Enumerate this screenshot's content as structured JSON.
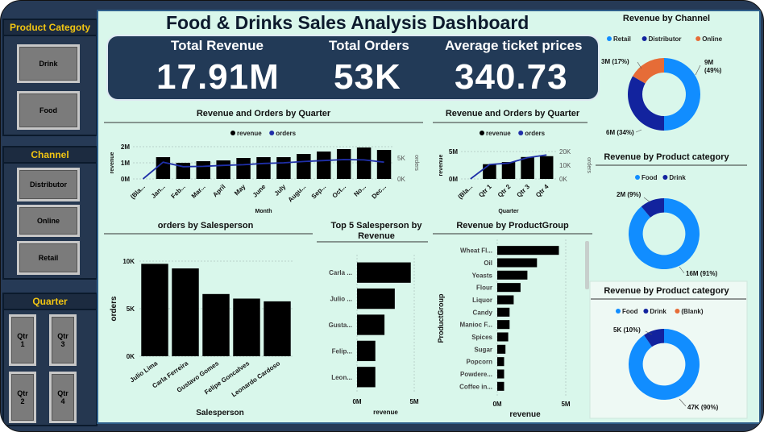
{
  "title": "Food & Drinks Sales Analysis Dashboard",
  "colors": {
    "background": "#d9f7eb",
    "panel": "#263a56",
    "kpi": "#223a57",
    "accent": "#f2c512",
    "bar": "#000000",
    "line": "#1f2fa8",
    "retail": "#118dff",
    "distributor": "#12239e",
    "online": "#e66c37"
  },
  "slicers": {
    "product": {
      "title": "Product Categoty",
      "items": [
        "Drink",
        "Food"
      ]
    },
    "channel": {
      "title": "Channel",
      "items": [
        "Distributor",
        "Online",
        "Retail"
      ]
    },
    "quarter": {
      "title": "Quarter",
      "items": [
        "Qtr 1",
        "Qtr 3",
        "Qtr 2",
        "Qtr 4"
      ]
    }
  },
  "kpis": [
    {
      "label": "Total Revenue",
      "value": "17.91M"
    },
    {
      "label": "Total Orders",
      "value": "53K"
    },
    {
      "label": "Average ticket prices",
      "value": "340.73"
    }
  ],
  "chart_data": [
    {
      "id": "monthly",
      "type": "bar",
      "title": "Revenue and Orders by Quarter",
      "legend": [
        "revenue",
        "orders"
      ],
      "xlabel": "Month",
      "ylabel": "revenue",
      "y2label": "orders",
      "categories": [
        "(Bla...",
        "Jan...",
        "Feb...",
        "Mar...",
        "April",
        "May",
        "June",
        "July",
        "Augu...",
        "Sep...",
        "Oct...",
        "No...",
        "Dec..."
      ],
      "ticks": [
        "2M",
        "1M",
        "0M"
      ],
      "ticks2": [
        "5K",
        "0K"
      ],
      "ylim": [
        0,
        2000000
      ],
      "y2lim": [
        0,
        10000
      ],
      "series": [
        {
          "name": "revenue",
          "type": "bar",
          "values": [
            0,
            1350000,
            1000000,
            1100000,
            1150000,
            1300000,
            1350000,
            1350000,
            1550000,
            1700000,
            1850000,
            1950000,
            1800000
          ]
        },
        {
          "name": "orders",
          "type": "line",
          "values": [
            0,
            5200,
            3800,
            3900,
            4200,
            4400,
            4800,
            5000,
            5400,
            5700,
            6000,
            5900,
            5200
          ]
        }
      ]
    },
    {
      "id": "quarterly",
      "type": "bar",
      "title": "Revenue and Orders by Quarter",
      "legend": [
        "revenue",
        "orders"
      ],
      "xlabel": "Quarter",
      "ylabel": "revenue",
      "y2label": "orders",
      "categories": [
        "(Bla...",
        "Qtr 1",
        "Qtr 2",
        "Qtr 3",
        "Qtr 4"
      ],
      "ticks": [
        "5M",
        "0M"
      ],
      "ticks2": [
        "20K",
        "10K",
        "0K"
      ],
      "ylim": [
        0,
        6500000
      ],
      "y2lim": [
        0,
        20000
      ],
      "series": [
        {
          "name": "revenue",
          "type": "bar",
          "values": [
            0,
            3500000,
            4000000,
            5200000,
            5400000
          ]
        },
        {
          "name": "orders",
          "type": "line",
          "values": [
            0,
            10500,
            11500,
            15500,
            17500
          ]
        }
      ]
    },
    {
      "id": "salesperson",
      "type": "bar",
      "title": "orders by Salesperson",
      "xlabel": "Salesperson",
      "ylabel": "orders",
      "categories": [
        "Julio Lima",
        "Carla Ferreira",
        "Gustavo Gomes",
        "Felipe Goncalves",
        "Leonardo Cardoso"
      ],
      "ticks": [
        "10K",
        "5K",
        "0K"
      ],
      "ylim": [
        0,
        11000
      ],
      "values": [
        10100,
        9600,
        6800,
        6300,
        6000
      ]
    },
    {
      "id": "top5",
      "type": "bar",
      "orientation": "horizontal",
      "title": "Top 5 Salesperson by Revenue",
      "xlabel": "revenue",
      "categories": [
        "Carla ...",
        "Julio ...",
        "Gusta...",
        "Felip...",
        "Leon..."
      ],
      "ticks": [
        "0M",
        "5M"
      ],
      "xlim": [
        0,
        5000000
      ],
      "values": [
        4700000,
        3300000,
        2400000,
        1600000,
        1600000
      ]
    },
    {
      "id": "productgroup",
      "type": "bar",
      "orientation": "horizontal",
      "title": "Revenue by ProductGroup",
      "xlabel": "revenue",
      "ylabel": "ProductGroup",
      "categories": [
        "Wheat Fl...",
        "Oil",
        "Yeasts",
        "Flour",
        "Liquor",
        "Candy",
        "Manioc F...",
        "Spices",
        "Sugar",
        "Popcorn",
        "Powdere...",
        "Coffee in..."
      ],
      "ticks": [
        "0M",
        "5M"
      ],
      "xlim": [
        0,
        5000000
      ],
      "values": [
        4500000,
        2900000,
        2200000,
        1700000,
        1200000,
        900000,
        900000,
        800000,
        600000,
        500000,
        500000,
        500000
      ]
    },
    {
      "id": "channel",
      "type": "pie",
      "title": "Revenue by Channel",
      "legend": [
        "Retail",
        "Distributor",
        "Online"
      ],
      "slices": [
        {
          "name": "Retail",
          "value": 9,
          "label": "9M (49%)"
        },
        {
          "name": "Distributor",
          "value": 6,
          "label": "6M (34%)"
        },
        {
          "name": "Online",
          "value": 3,
          "label": "3M (17%)"
        }
      ]
    },
    {
      "id": "category_revenue",
      "type": "pie",
      "title": "Revenue by Product category",
      "legend": [
        "Food",
        "Drink"
      ],
      "slices": [
        {
          "name": "Food",
          "value": 16,
          "label": "16M (91%)"
        },
        {
          "name": "Drink",
          "value": 2,
          "label": "2M (9%)"
        }
      ]
    },
    {
      "id": "category_orders",
      "type": "pie",
      "title": "Revenue by Product category",
      "legend": [
        "Food",
        "Drink",
        "(Blank)"
      ],
      "slices": [
        {
          "name": "Food",
          "value": 47,
          "label": "47K (90%)"
        },
        {
          "name": "Drink",
          "value": 5,
          "label": "5K (10%)"
        },
        {
          "name": "(Blank)",
          "value": 0,
          "label": ""
        }
      ]
    }
  ]
}
